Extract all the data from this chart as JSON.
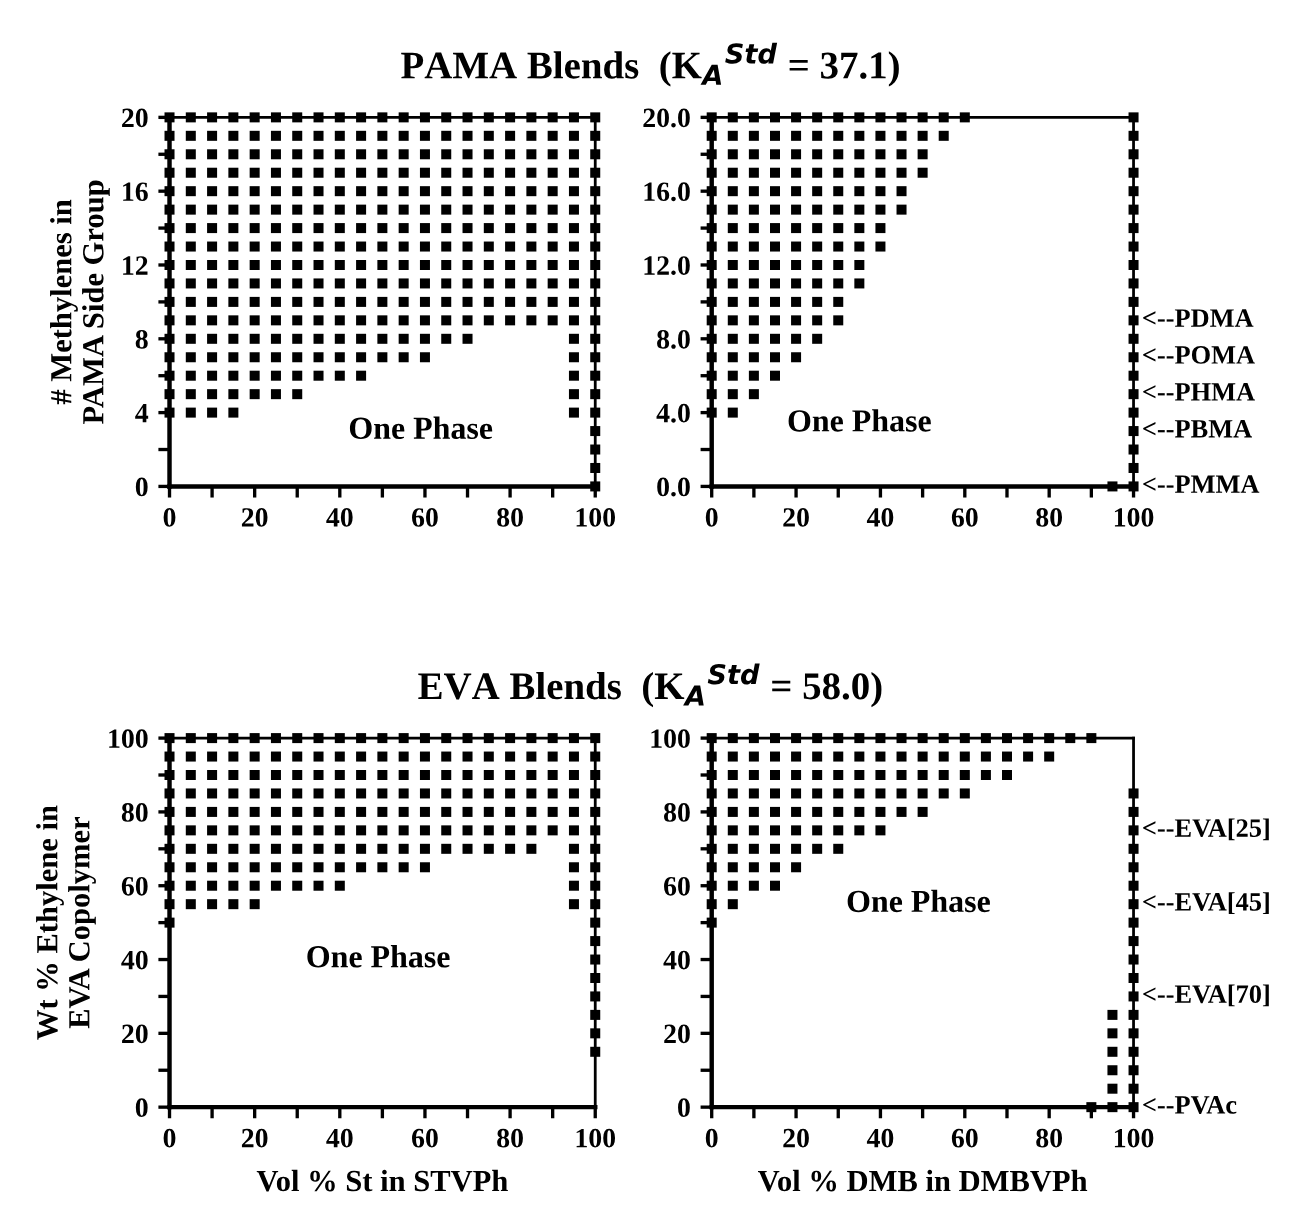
{
  "chart_data": [
    {
      "type": "scatter",
      "title": "PAMA Blends  (K$_{A}$$^{Std}$ = 37.1)",
      "ylabel": "# Methylenes in\nPAMA Side Group",
      "marker": "square",
      "color": "#000000",
      "xlim": [
        0,
        100
      ],
      "ylim": [
        0,
        20
      ],
      "xticks": [
        0,
        {
          "value": 10,
          "label": null
        },
        20,
        {
          "value": 30,
          "label": null
        },
        40,
        {
          "value": 50,
          "label": null
        },
        60,
        {
          "value": 70,
          "label": null
        },
        80,
        {
          "value": 90,
          "label": null
        },
        100
      ],
      "yticks": [
        0,
        {
          "value": 2,
          "label": null
        },
        4,
        {
          "value": 6,
          "label": null
        },
        8,
        {
          "value": 10,
          "label": null
        },
        12,
        {
          "value": 14,
          "label": null
        },
        16,
        {
          "value": 18,
          "label": null
        },
        20
      ],
      "annotations": [
        "One Phase"
      ],
      "series": [
        {
          "x": [
            0,
            0,
            0,
            0,
            0,
            0,
            0,
            0,
            0,
            0,
            0,
            0,
            0,
            0,
            0,
            0,
            0
          ],
          "values": [
            4,
            5,
            6,
            7,
            8,
            9,
            10,
            11,
            12,
            13,
            14,
            15,
            16,
            17,
            18,
            19,
            20
          ]
        },
        {
          "x": [
            5,
            5,
            5,
            5,
            5,
            5,
            5,
            5,
            5,
            5,
            5,
            5,
            5,
            5,
            5,
            5,
            5
          ],
          "values": [
            4,
            5,
            6,
            7,
            8,
            9,
            10,
            11,
            12,
            13,
            14,
            15,
            16,
            17,
            18,
            19,
            20
          ]
        },
        {
          "x": [
            10,
            10,
            10,
            10,
            10,
            10,
            10,
            10,
            10,
            10,
            10,
            10,
            10,
            10,
            10,
            10,
            10
          ],
          "values": [
            4,
            5,
            6,
            7,
            8,
            9,
            10,
            11,
            12,
            13,
            14,
            15,
            16,
            17,
            18,
            19,
            20
          ]
        },
        {
          "x": [
            15,
            15,
            15,
            15,
            15,
            15,
            15,
            15,
            15,
            15,
            15,
            15,
            15,
            15,
            15,
            15,
            15
          ],
          "values": [
            4,
            5,
            6,
            7,
            8,
            9,
            10,
            11,
            12,
            13,
            14,
            15,
            16,
            17,
            18,
            19,
            20
          ]
        },
        {
          "x": [
            20,
            20,
            20,
            20,
            20,
            20,
            20,
            20,
            20,
            20,
            20,
            20,
            20,
            20,
            20,
            20
          ],
          "values": [
            5,
            6,
            7,
            8,
            9,
            10,
            11,
            12,
            13,
            14,
            15,
            16,
            17,
            18,
            19,
            20
          ]
        },
        {
          "x": [
            25,
            25,
            25,
            25,
            25,
            25,
            25,
            25,
            25,
            25,
            25,
            25,
            25,
            25,
            25,
            25
          ],
          "values": [
            5,
            6,
            7,
            8,
            9,
            10,
            11,
            12,
            13,
            14,
            15,
            16,
            17,
            18,
            19,
            20
          ]
        },
        {
          "x": [
            30,
            30,
            30,
            30,
            30,
            30,
            30,
            30,
            30,
            30,
            30,
            30,
            30,
            30,
            30,
            30
          ],
          "values": [
            5,
            6,
            7,
            8,
            9,
            10,
            11,
            12,
            13,
            14,
            15,
            16,
            17,
            18,
            19,
            20
          ]
        },
        {
          "x": [
            35,
            35,
            35,
            35,
            35,
            35,
            35,
            35,
            35,
            35,
            35,
            35,
            35,
            35,
            35
          ],
          "values": [
            6,
            7,
            8,
            9,
            10,
            11,
            12,
            13,
            14,
            15,
            16,
            17,
            18,
            19,
            20
          ]
        },
        {
          "x": [
            40,
            40,
            40,
            40,
            40,
            40,
            40,
            40,
            40,
            40,
            40,
            40,
            40,
            40,
            40
          ],
          "values": [
            6,
            7,
            8,
            9,
            10,
            11,
            12,
            13,
            14,
            15,
            16,
            17,
            18,
            19,
            20
          ]
        },
        {
          "x": [
            45,
            45,
            45,
            45,
            45,
            45,
            45,
            45,
            45,
            45,
            45,
            45,
            45,
            45,
            45
          ],
          "values": [
            6,
            7,
            8,
            9,
            10,
            11,
            12,
            13,
            14,
            15,
            16,
            17,
            18,
            19,
            20
          ]
        },
        {
          "x": [
            50,
            50,
            50,
            50,
            50,
            50,
            50,
            50,
            50,
            50,
            50,
            50,
            50,
            50
          ],
          "values": [
            7,
            8,
            9,
            10,
            11,
            12,
            13,
            14,
            15,
            16,
            17,
            18,
            19,
            20
          ]
        },
        {
          "x": [
            55,
            55,
            55,
            55,
            55,
            55,
            55,
            55,
            55,
            55,
            55,
            55,
            55,
            55
          ],
          "values": [
            7,
            8,
            9,
            10,
            11,
            12,
            13,
            14,
            15,
            16,
            17,
            18,
            19,
            20
          ]
        },
        {
          "x": [
            60,
            60,
            60,
            60,
            60,
            60,
            60,
            60,
            60,
            60,
            60,
            60,
            60,
            60
          ],
          "values": [
            7,
            8,
            9,
            10,
            11,
            12,
            13,
            14,
            15,
            16,
            17,
            18,
            19,
            20
          ]
        },
        {
          "x": [
            65,
            65,
            65,
            65,
            65,
            65,
            65,
            65,
            65,
            65,
            65,
            65,
            65
          ],
          "values": [
            8,
            9,
            10,
            11,
            12,
            13,
            14,
            15,
            16,
            17,
            18,
            19,
            20
          ]
        },
        {
          "x": [
            70,
            70,
            70,
            70,
            70,
            70,
            70,
            70,
            70,
            70,
            70,
            70,
            70
          ],
          "values": [
            8,
            9,
            10,
            11,
            12,
            13,
            14,
            15,
            16,
            17,
            18,
            19,
            20
          ]
        },
        {
          "x": [
            75,
            75,
            75,
            75,
            75,
            75,
            75,
            75,
            75,
            75,
            75,
            75
          ],
          "values": [
            9,
            10,
            11,
            12,
            13,
            14,
            15,
            16,
            17,
            18,
            19,
            20
          ]
        },
        {
          "x": [
            80,
            80,
            80,
            80,
            80,
            80,
            80,
            80,
            80,
            80,
            80,
            80
          ],
          "values": [
            9,
            10,
            11,
            12,
            13,
            14,
            15,
            16,
            17,
            18,
            19,
            20
          ]
        },
        {
          "x": [
            85,
            85,
            85,
            85,
            85,
            85,
            85,
            85,
            85,
            85,
            85,
            85
          ],
          "values": [
            9,
            10,
            11,
            12,
            13,
            14,
            15,
            16,
            17,
            18,
            19,
            20
          ]
        },
        {
          "x": [
            90,
            90,
            90,
            90,
            90,
            90,
            90,
            90,
            90,
            90,
            90,
            90
          ],
          "values": [
            9,
            10,
            11,
            12,
            13,
            14,
            15,
            16,
            17,
            18,
            19,
            20
          ]
        },
        {
          "x": [
            95,
            95,
            95,
            95,
            95,
            95,
            95,
            95,
            95,
            95,
            95,
            95,
            95,
            95,
            95,
            95,
            95
          ],
          "values": [
            4,
            5,
            6,
            7,
            8,
            9,
            10,
            11,
            12,
            13,
            14,
            15,
            16,
            17,
            18,
            19,
            20
          ]
        },
        {
          "x": [
            100,
            100,
            100,
            100,
            100,
            100,
            100,
            100,
            100,
            100,
            100,
            100,
            100,
            100,
            100,
            100,
            100,
            100,
            100,
            100,
            100
          ],
          "values": [
            0,
            1,
            2,
            3,
            4,
            5,
            6,
            7,
            8,
            9,
            10,
            11,
            12,
            13,
            14,
            15,
            16,
            17,
            18,
            19,
            20
          ]
        }
      ]
    },
    {
      "type": "scatter",
      "marker": "square",
      "color": "#000000",
      "xlim": [
        0,
        100
      ],
      "ylim": [
        0,
        20
      ],
      "xticks": [
        0,
        {
          "value": 10,
          "label": null
        },
        20,
        {
          "value": 30,
          "label": null
        },
        40,
        {
          "value": 50,
          "label": null
        },
        60,
        {
          "value": 70,
          "label": null
        },
        80,
        {
          "value": 90,
          "label": null
        },
        100
      ],
      "yticks": [
        {
          "value": 0,
          "label": "0.0"
        },
        {
          "value": 2,
          "label": null
        },
        {
          "value": 4,
          "label": "4.0"
        },
        {
          "value": 6,
          "label": null
        },
        {
          "value": 8,
          "label": "8.0"
        },
        {
          "value": 10,
          "label": null
        },
        {
          "value": 12,
          "label": "12.0"
        },
        {
          "value": 14,
          "label": null
        },
        {
          "value": 16,
          "label": "16.0"
        },
        {
          "value": 18,
          "label": null
        },
        {
          "value": 20,
          "label": "20.0"
        }
      ],
      "annotations": [
        "One Phase",
        "<--PDMA",
        "<--POMA",
        "<--PHMA",
        "<--PBMA",
        "<--PMMA"
      ],
      "series": [
        {
          "x": [
            0,
            0,
            0,
            0,
            0,
            0,
            0,
            0,
            0,
            0,
            0,
            0,
            0,
            0,
            0,
            0,
            0
          ],
          "values": [
            4,
            5,
            6,
            7,
            8,
            9,
            10,
            11,
            12,
            13,
            14,
            15,
            16,
            17,
            18,
            19,
            20
          ]
        },
        {
          "x": [
            5,
            5,
            5,
            5,
            5,
            5,
            5,
            5,
            5,
            5,
            5,
            5,
            5,
            5,
            5,
            5,
            5
          ],
          "values": [
            4,
            5,
            6,
            7,
            8,
            9,
            10,
            11,
            12,
            13,
            14,
            15,
            16,
            17,
            18,
            19,
            20
          ]
        },
        {
          "x": [
            10,
            10,
            10,
            10,
            10,
            10,
            10,
            10,
            10,
            10,
            10,
            10,
            10,
            10,
            10,
            10
          ],
          "values": [
            5,
            6,
            7,
            8,
            9,
            10,
            11,
            12,
            13,
            14,
            15,
            16,
            17,
            18,
            19,
            20
          ]
        },
        {
          "x": [
            15,
            15,
            15,
            15,
            15,
            15,
            15,
            15,
            15,
            15,
            15,
            15,
            15,
            15,
            15
          ],
          "values": [
            6,
            7,
            8,
            9,
            10,
            11,
            12,
            13,
            14,
            15,
            16,
            17,
            18,
            19,
            20
          ]
        },
        {
          "x": [
            20,
            20,
            20,
            20,
            20,
            20,
            20,
            20,
            20,
            20,
            20,
            20,
            20,
            20
          ],
          "values": [
            7,
            8,
            9,
            10,
            11,
            12,
            13,
            14,
            15,
            16,
            17,
            18,
            19,
            20
          ]
        },
        {
          "x": [
            25,
            25,
            25,
            25,
            25,
            25,
            25,
            25,
            25,
            25,
            25,
            25,
            25
          ],
          "values": [
            8,
            9,
            10,
            11,
            12,
            13,
            14,
            15,
            16,
            17,
            18,
            19,
            20
          ]
        },
        {
          "x": [
            30,
            30,
            30,
            30,
            30,
            30,
            30,
            30,
            30,
            30,
            30,
            30
          ],
          "values": [
            9,
            10,
            11,
            12,
            13,
            14,
            15,
            16,
            17,
            18,
            19,
            20
          ]
        },
        {
          "x": [
            35,
            35,
            35,
            35,
            35,
            35,
            35,
            35,
            35,
            35
          ],
          "values": [
            11,
            12,
            13,
            14,
            15,
            16,
            17,
            18,
            19,
            20
          ]
        },
        {
          "x": [
            40,
            40,
            40,
            40,
            40,
            40,
            40,
            40
          ],
          "values": [
            13,
            14,
            15,
            16,
            17,
            18,
            19,
            20
          ]
        },
        {
          "x": [
            45,
            45,
            45,
            45,
            45,
            45
          ],
          "values": [
            15,
            16,
            17,
            18,
            19,
            20
          ]
        },
        {
          "x": [
            50,
            50,
            50,
            50
          ],
          "values": [
            17,
            18,
            19,
            20
          ]
        },
        {
          "x": [
            55,
            55
          ],
          "values": [
            19,
            20
          ]
        },
        {
          "x": [
            60
          ],
          "values": [
            20
          ]
        },
        {
          "x": [
            95
          ],
          "values": [
            0
          ]
        },
        {
          "x": [
            100,
            100,
            100,
            100,
            100,
            100,
            100,
            100,
            100,
            100,
            100,
            100,
            100,
            100,
            100,
            100,
            100,
            100,
            100,
            100,
            100
          ],
          "values": [
            0,
            1,
            2,
            3,
            4,
            5,
            6,
            7,
            8,
            9,
            10,
            11,
            12,
            13,
            14,
            15,
            16,
            17,
            18,
            19,
            20
          ]
        }
      ]
    },
    {
      "type": "scatter",
      "title": "EVA Blends  (K$_{A}$$^{Std}$ = 58.0)",
      "xlabel": "Vol % St in STVPh",
      "ylabel": "Wt % Ethylene in\nEVA Copolymer",
      "marker": "square",
      "color": "#000000",
      "xlim": [
        0,
        100
      ],
      "ylim": [
        0,
        100
      ],
      "xticks": [
        0,
        {
          "value": 10,
          "label": null
        },
        20,
        {
          "value": 30,
          "label": null
        },
        40,
        {
          "value": 50,
          "label": null
        },
        60,
        {
          "value": 70,
          "label": null
        },
        80,
        {
          "value": 90,
          "label": null
        },
        100
      ],
      "yticks": [
        0,
        {
          "value": 10,
          "label": null
        },
        20,
        {
          "value": 30,
          "label": null
        },
        40,
        {
          "value": 50,
          "label": null
        },
        60,
        {
          "value": 70,
          "label": null
        },
        80,
        {
          "value": 90,
          "label": null
        },
        100
      ],
      "annotations": [
        "One Phase"
      ],
      "series": [
        {
          "x": [
            0,
            0,
            0,
            0,
            0,
            0,
            0,
            0,
            0,
            0,
            0
          ],
          "values": [
            50,
            55,
            60,
            65,
            70,
            75,
            80,
            85,
            90,
            95,
            100
          ]
        },
        {
          "x": [
            5,
            5,
            5,
            5,
            5,
            5,
            5,
            5,
            5,
            5
          ],
          "values": [
            55,
            60,
            65,
            70,
            75,
            80,
            85,
            90,
            95,
            100
          ]
        },
        {
          "x": [
            10,
            10,
            10,
            10,
            10,
            10,
            10,
            10,
            10,
            10
          ],
          "values": [
            55,
            60,
            65,
            70,
            75,
            80,
            85,
            90,
            95,
            100
          ]
        },
        {
          "x": [
            15,
            15,
            15,
            15,
            15,
            15,
            15,
            15,
            15,
            15
          ],
          "values": [
            55,
            60,
            65,
            70,
            75,
            80,
            85,
            90,
            95,
            100
          ]
        },
        {
          "x": [
            20,
            20,
            20,
            20,
            20,
            20,
            20,
            20,
            20,
            20
          ],
          "values": [
            55,
            60,
            65,
            70,
            75,
            80,
            85,
            90,
            95,
            100
          ]
        },
        {
          "x": [
            25,
            25,
            25,
            25,
            25,
            25,
            25,
            25,
            25
          ],
          "values": [
            60,
            65,
            70,
            75,
            80,
            85,
            90,
            95,
            100
          ]
        },
        {
          "x": [
            30,
            30,
            30,
            30,
            30,
            30,
            30,
            30,
            30
          ],
          "values": [
            60,
            65,
            70,
            75,
            80,
            85,
            90,
            95,
            100
          ]
        },
        {
          "x": [
            35,
            35,
            35,
            35,
            35,
            35,
            35,
            35,
            35
          ],
          "values": [
            60,
            65,
            70,
            75,
            80,
            85,
            90,
            95,
            100
          ]
        },
        {
          "x": [
            40,
            40,
            40,
            40,
            40,
            40,
            40,
            40,
            40
          ],
          "values": [
            60,
            65,
            70,
            75,
            80,
            85,
            90,
            95,
            100
          ]
        },
        {
          "x": [
            45,
            45,
            45,
            45,
            45,
            45,
            45,
            45
          ],
          "values": [
            65,
            70,
            75,
            80,
            85,
            90,
            95,
            100
          ]
        },
        {
          "x": [
            50,
            50,
            50,
            50,
            50,
            50,
            50,
            50
          ],
          "values": [
            65,
            70,
            75,
            80,
            85,
            90,
            95,
            100
          ]
        },
        {
          "x": [
            55,
            55,
            55,
            55,
            55,
            55,
            55,
            55
          ],
          "values": [
            65,
            70,
            75,
            80,
            85,
            90,
            95,
            100
          ]
        },
        {
          "x": [
            60,
            60,
            60,
            60,
            60,
            60,
            60,
            60
          ],
          "values": [
            65,
            70,
            75,
            80,
            85,
            90,
            95,
            100
          ]
        },
        {
          "x": [
            65,
            65,
            65,
            65,
            65,
            65,
            65
          ],
          "values": [
            70,
            75,
            80,
            85,
            90,
            95,
            100
          ]
        },
        {
          "x": [
            70,
            70,
            70,
            70,
            70,
            70,
            70
          ],
          "values": [
            70,
            75,
            80,
            85,
            90,
            95,
            100
          ]
        },
        {
          "x": [
            75,
            75,
            75,
            75,
            75,
            75,
            75
          ],
          "values": [
            70,
            75,
            80,
            85,
            90,
            95,
            100
          ]
        },
        {
          "x": [
            80,
            80,
            80,
            80,
            80,
            80,
            80
          ],
          "values": [
            70,
            75,
            80,
            85,
            90,
            95,
            100
          ]
        },
        {
          "x": [
            85,
            85,
            85,
            85,
            85,
            85,
            85
          ],
          "values": [
            70,
            75,
            80,
            85,
            90,
            95,
            100
          ]
        },
        {
          "x": [
            90,
            90,
            90,
            90,
            90,
            90
          ],
          "values": [
            75,
            80,
            85,
            90,
            95,
            100
          ]
        },
        {
          "x": [
            95,
            95,
            95,
            95,
            95,
            95,
            95,
            95,
            95,
            95
          ],
          "values": [
            55,
            60,
            65,
            70,
            75,
            80,
            85,
            90,
            95,
            100
          ]
        },
        {
          "x": [
            100,
            100,
            100,
            100,
            100,
            100,
            100,
            100,
            100,
            100,
            100,
            100,
            100,
            100,
            100,
            100,
            100,
            100
          ],
          "values": [
            15,
            20,
            25,
            30,
            35,
            40,
            45,
            50,
            55,
            60,
            65,
            70,
            75,
            80,
            85,
            90,
            95,
            100
          ]
        }
      ]
    },
    {
      "type": "scatter",
      "xlabel": "Vol % DMB in DMBVPh",
      "marker": "square",
      "color": "#000000",
      "xlim": [
        0,
        100
      ],
      "ylim": [
        0,
        100
      ],
      "xticks": [
        0,
        {
          "value": 10,
          "label": null
        },
        20,
        {
          "value": 30,
          "label": null
        },
        40,
        {
          "value": 50,
          "label": null
        },
        60,
        {
          "value": 70,
          "label": null
        },
        80,
        {
          "value": 90,
          "label": null
        },
        100
      ],
      "yticks": [
        0,
        {
          "value": 10,
          "label": null
        },
        20,
        {
          "value": 30,
          "label": null
        },
        40,
        {
          "value": 50,
          "label": null
        },
        60,
        {
          "value": 70,
          "label": null
        },
        80,
        {
          "value": 90,
          "label": null
        },
        100
      ],
      "annotations": [
        "One Phase",
        "<--EVA[25]",
        "<--EVA[45]",
        "<--EVA[70]",
        "<--PVAc"
      ],
      "series": [
        {
          "x": [
            0,
            0,
            0,
            0,
            0,
            0,
            0,
            0,
            0,
            0,
            0
          ],
          "values": [
            50,
            55,
            60,
            65,
            70,
            75,
            80,
            85,
            90,
            95,
            100
          ]
        },
        {
          "x": [
            5,
            5,
            5,
            5,
            5,
            5,
            5,
            5,
            5,
            5
          ],
          "values": [
            55,
            60,
            65,
            70,
            75,
            80,
            85,
            90,
            95,
            100
          ]
        },
        {
          "x": [
            10,
            10,
            10,
            10,
            10,
            10,
            10,
            10,
            10
          ],
          "values": [
            60,
            65,
            70,
            75,
            80,
            85,
            90,
            95,
            100
          ]
        },
        {
          "x": [
            15,
            15,
            15,
            15,
            15,
            15,
            15,
            15,
            15
          ],
          "values": [
            60,
            65,
            70,
            75,
            80,
            85,
            90,
            95,
            100
          ]
        },
        {
          "x": [
            20,
            20,
            20,
            20,
            20,
            20,
            20,
            20
          ],
          "values": [
            65,
            70,
            75,
            80,
            85,
            90,
            95,
            100
          ]
        },
        {
          "x": [
            25,
            25,
            25,
            25,
            25,
            25,
            25
          ],
          "values": [
            70,
            75,
            80,
            85,
            90,
            95,
            100
          ]
        },
        {
          "x": [
            30,
            30,
            30,
            30,
            30,
            30,
            30
          ],
          "values": [
            70,
            75,
            80,
            85,
            90,
            95,
            100
          ]
        },
        {
          "x": [
            35,
            35,
            35,
            35,
            35,
            35
          ],
          "values": [
            75,
            80,
            85,
            90,
            95,
            100
          ]
        },
        {
          "x": [
            40,
            40,
            40,
            40,
            40,
            40
          ],
          "values": [
            75,
            80,
            85,
            90,
            95,
            100
          ]
        },
        {
          "x": [
            45,
            45,
            45,
            45,
            45
          ],
          "values": [
            80,
            85,
            90,
            95,
            100
          ]
        },
        {
          "x": [
            50,
            50,
            50,
            50,
            50
          ],
          "values": [
            80,
            85,
            90,
            95,
            100
          ]
        },
        {
          "x": [
            55,
            55,
            55,
            55
          ],
          "values": [
            85,
            90,
            95,
            100
          ]
        },
        {
          "x": [
            60,
            60,
            60,
            60
          ],
          "values": [
            85,
            90,
            95,
            100
          ]
        },
        {
          "x": [
            65,
            65,
            65
          ],
          "values": [
            90,
            95,
            100
          ]
        },
        {
          "x": [
            70,
            70,
            70
          ],
          "values": [
            90,
            95,
            100
          ]
        },
        {
          "x": [
            75,
            75
          ],
          "values": [
            95,
            100
          ]
        },
        {
          "x": [
            80,
            80
          ],
          "values": [
            95,
            100
          ]
        },
        {
          "x": [
            85
          ],
          "values": [
            100
          ]
        },
        {
          "x": [
            90,
            90
          ],
          "values": [
            0,
            100
          ]
        },
        {
          "x": [
            95,
            95,
            95,
            95,
            95,
            95
          ],
          "values": [
            0,
            5,
            10,
            15,
            20,
            25
          ]
        },
        {
          "x": [
            100,
            100,
            100,
            100,
            100,
            100,
            100,
            100,
            100,
            100,
            100,
            100,
            100,
            100,
            100,
            100,
            100,
            100
          ],
          "values": [
            0,
            5,
            10,
            15,
            20,
            25,
            30,
            35,
            40,
            45,
            50,
            55,
            60,
            65,
            70,
            75,
            80,
            85
          ]
        }
      ]
    }
  ]
}
